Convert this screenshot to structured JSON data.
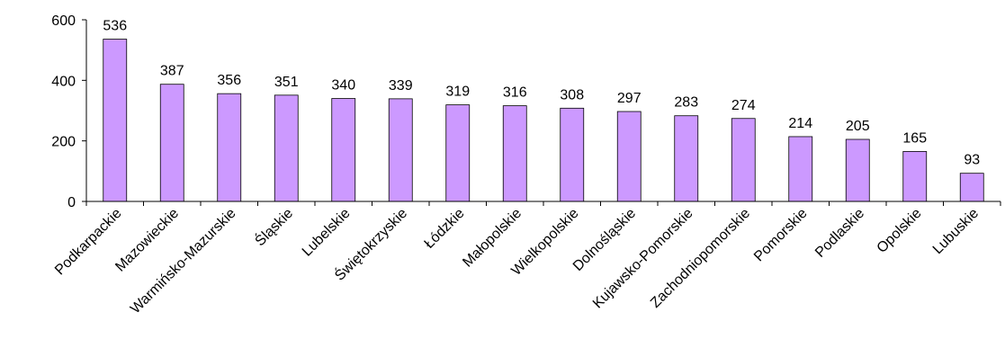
{
  "chart_data": {
    "type": "bar",
    "categories": [
      "Podkarpackie",
      "Mazowieckie",
      "Warmińsko-Mazurskie",
      "Śląskie",
      "Lubelskie",
      "Świętokrzyskie",
      "Łódzkie",
      "Małopolskie",
      "Wielkopolskie",
      "Dolnośląskie",
      "Kujawsko-Pomorskie",
      "Zachodniopomorskie",
      "Pomorskie",
      "Podlaskie",
      "Opolskie",
      "Lubuskie"
    ],
    "values": [
      536,
      387,
      356,
      351,
      340,
      339,
      319,
      316,
      308,
      297,
      283,
      274,
      214,
      205,
      165,
      93
    ],
    "ylim": [
      0,
      600
    ],
    "yticks": [
      0,
      200,
      400,
      600
    ],
    "grid": false,
    "legend": "none",
    "bar_color": "#cc99ff",
    "bar_stroke": "#000000"
  }
}
